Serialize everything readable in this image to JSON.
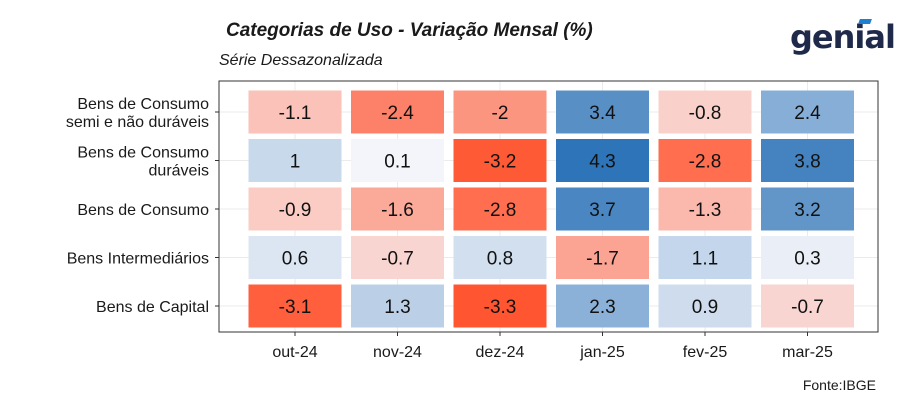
{
  "header": {
    "title": "Categorias de Uso - Variação Mensal (%)",
    "subtitle": "Série Dessazonalizada",
    "logo": "genial"
  },
  "footer": {
    "source": "Fonte:IBGE"
  },
  "colors": {
    "positive": "#2e74b8",
    "negative": "#ff5530",
    "neutral": "#f8f8fc",
    "panel_border": "#333333"
  },
  "chart_data": {
    "type": "heatmap",
    "title": "Categorias de Uso - Variação Mensal (%)",
    "subtitle": "Série Dessazonalizada",
    "x": [
      "out-24",
      "nov-24",
      "dez-24",
      "jan-25",
      "fev-25",
      "mar-25"
    ],
    "y": [
      [
        "Bens de Consumo",
        "semi e não duráveis"
      ],
      [
        "Bens de Consumo",
        "duráveis"
      ],
      [
        "Bens de Consumo"
      ],
      [
        "Bens Intermediários"
      ],
      [
        "Bens de Capital"
      ]
    ],
    "values": [
      [
        -1.1,
        -2.4,
        -2,
        3.4,
        -0.8,
        2.4
      ],
      [
        1,
        0.1,
        -3.2,
        4.3,
        -2.8,
        3.8
      ],
      [
        -0.9,
        -1.6,
        -2.8,
        3.7,
        -1.3,
        3.2
      ],
      [
        0.6,
        -0.7,
        0.8,
        -1.7,
        1.1,
        0.3
      ],
      [
        -3.1,
        1.3,
        -3.3,
        2.3,
        0.9,
        -0.7
      ]
    ],
    "color_scale": {
      "min": -3.3,
      "max": 4.3,
      "low": "#ff5530",
      "mid": "#f8f8fc",
      "high": "#2e74b8"
    },
    "grid": true,
    "source": "Fonte:IBGE"
  }
}
